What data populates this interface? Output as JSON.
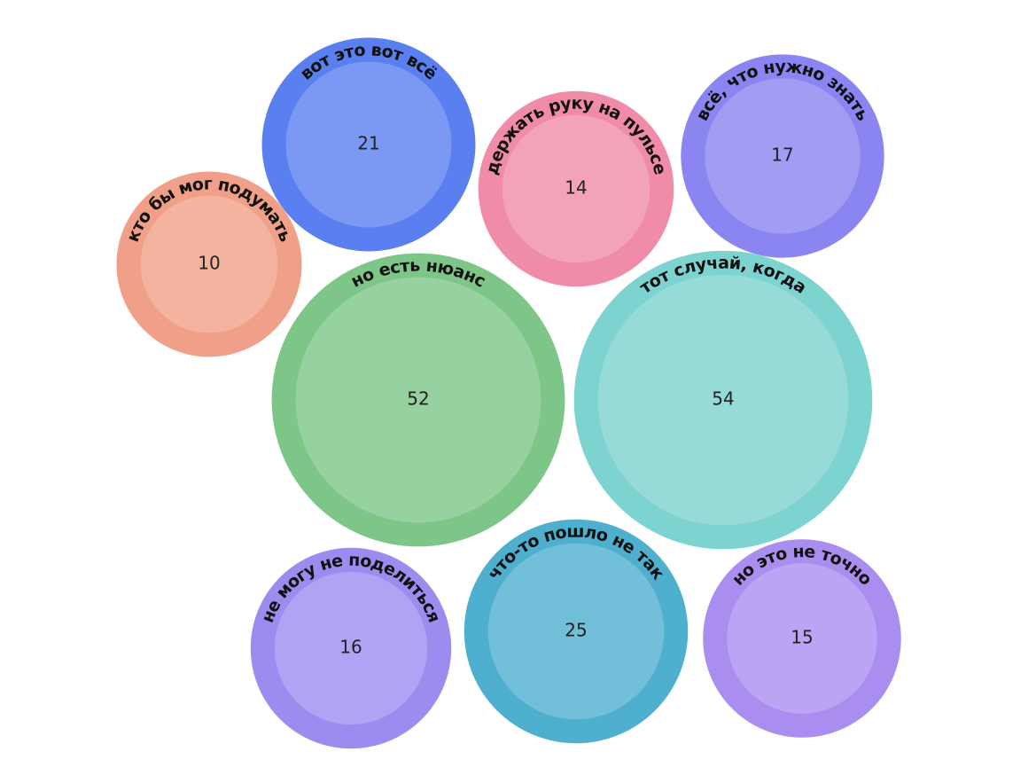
{
  "chart_data": {
    "type": "bubble",
    "categories": [
      "вот это вот всё",
      "кто бы мог подумать",
      "держать руку на пульсе",
      "всё, что нужно знать",
      "но есть нюанс",
      "тот случай, когда",
      "не могу не поделиться",
      "что-то пошло не так",
      "но это не точно"
    ],
    "values": [
      21,
      10,
      14,
      17,
      52,
      54,
      16,
      25,
      15
    ],
    "colors": [
      "#5a7ff0",
      "#f0a088",
      "#f08ca8",
      "#8a85f0",
      "#7dc687",
      "#7dd3d0",
      "#9b8cf0",
      "#4eafcf",
      "#a98ef0"
    ]
  }
}
